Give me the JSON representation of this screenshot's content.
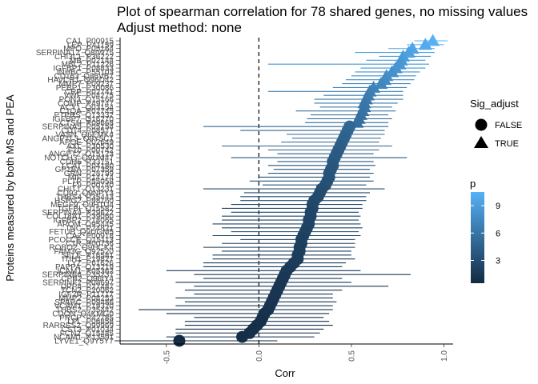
{
  "chart_data": {
    "type": "scatter",
    "title_line1": "Plot of spearman correlation for 78 shared genes, no missing values",
    "title_line2": "Adjust method: none",
    "xlabel": "Corr",
    "ylabel": "Proteins measured by both MS and PEA",
    "xlim": [
      -0.75,
      1.05
    ],
    "xticks": [
      -0.5,
      0.0,
      0.5,
      1.0
    ],
    "xtick_labels": [
      "-0.5",
      "0.0",
      "0.5",
      "1.0"
    ],
    "reference_line_x": 0,
    "reference_line_style": "dashed",
    "grid": false,
    "legend_position": "right",
    "shape_legend": {
      "title": "Sig_adjust",
      "items": [
        {
          "label": "FALSE",
          "shape": "circle"
        },
        {
          "label": "TRUE",
          "shape": "triangle"
        }
      ]
    },
    "color_legend": {
      "title": "p",
      "range": [
        0.5,
        10.5
      ],
      "breaks": [
        3,
        6,
        9
      ],
      "break_labels": [
        "3",
        "6",
        "9"
      ],
      "low_color": "#132b43",
      "high_color": "#56b1f7"
    },
    "points": [
      {
        "label": "CA1_P00915",
        "corr": 0.94,
        "lo": 0.84,
        "hi": 1.02,
        "p": 10.5,
        "sig": true
      },
      {
        "label": "LEP_P41159",
        "corr": 0.9,
        "lo": 0.8,
        "hi": 1.0,
        "p": 10.0,
        "sig": true
      },
      {
        "label": "MPO_P05164",
        "corr": 0.83,
        "lo": 0.7,
        "hi": 0.95,
        "p": 9.6,
        "sig": true
      },
      {
        "label": "SERPINA12_Q8IW75",
        "corr": 0.81,
        "lo": 0.52,
        "hi": 0.95,
        "p": 9.3,
        "sig": true
      },
      {
        "label": "CHI3L1_P36222",
        "corr": 0.78,
        "lo": 0.65,
        "hi": 0.93,
        "p": 9.0,
        "sig": true
      },
      {
        "label": "MB_P02144",
        "corr": 0.77,
        "lo": 0.58,
        "hi": 0.9,
        "p": 8.7,
        "sig": true
      },
      {
        "label": "MBL2_P11226",
        "corr": 0.76,
        "lo": 0.05,
        "hi": 0.92,
        "p": 8.5,
        "sig": true
      },
      {
        "label": "IGFBP1_P08833",
        "corr": 0.74,
        "lo": 0.55,
        "hi": 0.9,
        "p": 8.3,
        "sig": true
      },
      {
        "label": "INHBC_P55103",
        "corr": 0.72,
        "lo": 0.52,
        "hi": 0.87,
        "p": 8.1,
        "sig": true
      },
      {
        "label": "CD163_Q86VB7",
        "corr": 0.69,
        "lo": 0.5,
        "hi": 0.85,
        "p": 7.9,
        "sig": true
      },
      {
        "label": "HAVCR1_Q96D42",
        "corr": 0.68,
        "lo": 0.47,
        "hi": 0.84,
        "p": 7.6,
        "sig": true
      },
      {
        "label": "MMP7_P09237",
        "corr": 0.66,
        "lo": 0.45,
        "hi": 0.82,
        "p": 7.4,
        "sig": true
      },
      {
        "label": "PEBP1_P30086",
        "corr": 0.62,
        "lo": 0.4,
        "hi": 0.8,
        "p": 7.0,
        "sig": true
      },
      {
        "label": "CRP_P02741",
        "corr": 0.6,
        "lo": 0.05,
        "hi": 0.78,
        "p": 6.8,
        "sig": true
      },
      {
        "label": "VWF_P04275",
        "corr": 0.59,
        "lo": 0.35,
        "hi": 0.78,
        "p": 6.6,
        "sig": true
      },
      {
        "label": "PON3_Q15166",
        "corr": 0.58,
        "lo": 0.3,
        "hi": 0.78,
        "p": 6.4,
        "sig": true
      },
      {
        "label": "COMP_P49747",
        "corr": 0.57,
        "lo": 0.3,
        "hi": 0.75,
        "p": 6.2,
        "sig": true
      },
      {
        "label": "ACY1_Q03154",
        "corr": 0.57,
        "lo": 0.33,
        "hi": 0.72,
        "p": 6.1,
        "sig": true
      },
      {
        "label": "C1QA_P02745",
        "corr": 0.56,
        "lo": 0.2,
        "hi": 0.74,
        "p": 5.9,
        "sig": true
      },
      {
        "label": "PTPRS_Q13332",
        "corr": 0.55,
        "lo": 0.28,
        "hi": 0.7,
        "p": 5.8,
        "sig": true
      },
      {
        "label": "IGFBP7_Q16270",
        "corr": 0.54,
        "lo": 0.26,
        "hi": 0.72,
        "p": 5.6,
        "sig": true
      },
      {
        "label": "CTSH_P09668",
        "corr": 0.53,
        "lo": 0.25,
        "hi": 0.7,
        "p": 5.5,
        "sig": true
      },
      {
        "label": "SERPINA5_P05154",
        "corr": 0.49,
        "lo": -0.3,
        "hi": 0.7,
        "p": 5.0,
        "sig": false
      },
      {
        "label": "CD14_P08571",
        "corr": 0.48,
        "lo": -0.1,
        "hi": 0.68,
        "p": 4.9,
        "sig": false
      },
      {
        "label": "VASN_Q6EMK4",
        "corr": 0.47,
        "lo": 0.15,
        "hi": 0.68,
        "p": 4.8,
        "sig": false
      },
      {
        "label": "ANGPTL3_Q9Y5C1",
        "corr": 0.46,
        "lo": 0.18,
        "hi": 0.66,
        "p": 4.6,
        "sig": false
      },
      {
        "label": "APOE_P02649",
        "corr": 0.45,
        "lo": 0.12,
        "hi": 0.65,
        "p": 4.5,
        "sig": false
      },
      {
        "label": "AXL_P30530",
        "corr": 0.44,
        "lo": -0.2,
        "hi": 0.72,
        "p": 4.3,
        "sig": false
      },
      {
        "label": "F10_P00742",
        "corr": 0.43,
        "lo": 0.05,
        "hi": 0.65,
        "p": 4.2,
        "sig": false
      },
      {
        "label": "ANGPT2_O15123",
        "corr": 0.42,
        "lo": 0.1,
        "hi": 0.62,
        "p": 4.1,
        "sig": false
      },
      {
        "label": "NOTCH3_Q9UM47",
        "corr": 0.41,
        "lo": -0.15,
        "hi": 0.8,
        "p": 4.0,
        "sig": false
      },
      {
        "label": "CDH5_P33151",
        "corr": 0.4,
        "lo": 0.1,
        "hi": 0.62,
        "p": 3.9,
        "sig": false
      },
      {
        "label": "LCAT_P04180",
        "corr": 0.4,
        "lo": 0.05,
        "hi": 0.63,
        "p": 3.8,
        "sig": false
      },
      {
        "label": "GP1BA_P07359",
        "corr": 0.39,
        "lo": 0.08,
        "hi": 0.6,
        "p": 3.7,
        "sig": false
      },
      {
        "label": "GRN_P28799",
        "corr": 0.38,
        "lo": 0.05,
        "hi": 0.62,
        "p": 3.6,
        "sig": false
      },
      {
        "label": "MIF_P14174",
        "corr": 0.38,
        "lo": 0.0,
        "hi": 0.6,
        "p": 3.5,
        "sig": false
      },
      {
        "label": "PLTP_P55058",
        "corr": 0.37,
        "lo": -0.05,
        "hi": 0.62,
        "p": 3.4,
        "sig": false
      },
      {
        "label": "F9_P00740",
        "corr": 0.36,
        "lo": 0.02,
        "hi": 0.58,
        "p": 3.3,
        "sig": false
      },
      {
        "label": "CHIT1_Q13231",
        "corr": 0.34,
        "lo": -0.3,
        "hi": 0.68,
        "p": 3.1,
        "sig": false
      },
      {
        "label": "CD93_Q9NPY3",
        "corr": 0.33,
        "lo": -0.08,
        "hi": 0.6,
        "p": 3.0,
        "sig": false
      },
      {
        "label": "THBS4_P35443",
        "corr": 0.32,
        "lo": -0.1,
        "hi": 0.58,
        "p": 2.9,
        "sig": false
      },
      {
        "label": "HSPG2_P98160",
        "corr": 0.3,
        "lo": -0.1,
        "hi": 0.58,
        "p": 2.8,
        "sig": false
      },
      {
        "label": "MEGF9_Q9H1U4",
        "corr": 0.29,
        "lo": -0.15,
        "hi": 0.56,
        "p": 2.7,
        "sig": false
      },
      {
        "label": "TGFBI_Q15582",
        "corr": 0.29,
        "lo": -0.2,
        "hi": 0.56,
        "p": 2.6,
        "sig": false
      },
      {
        "label": "SERPINA4_P29622",
        "corr": 0.28,
        "lo": -0.15,
        "hi": 0.54,
        "p": 2.5,
        "sig": false
      },
      {
        "label": "COL18A1_P39060",
        "corr": 0.28,
        "lo": -0.2,
        "hi": 0.55,
        "p": 2.5,
        "sig": false
      },
      {
        "label": "IGFBP2_P18065",
        "corr": 0.27,
        "lo": -0.2,
        "hi": 0.54,
        "p": 2.4,
        "sig": false
      },
      {
        "label": "APOM_O95445",
        "corr": 0.27,
        "lo": -0.25,
        "hi": 0.55,
        "p": 2.4,
        "sig": false
      },
      {
        "label": "TNC_P24821",
        "corr": 0.26,
        "lo": -0.2,
        "hi": 0.56,
        "p": 2.3,
        "sig": false
      },
      {
        "label": "FETUB_Q9UGM5",
        "corr": 0.25,
        "lo": -0.15,
        "hi": 0.54,
        "p": 2.2,
        "sig": false
      },
      {
        "label": "CA2_P00918",
        "corr": 0.24,
        "lo": -0.25,
        "hi": 0.55,
        "p": 2.2,
        "sig": false
      },
      {
        "label": "PCOLCE_Q15113",
        "corr": 0.23,
        "lo": -0.1,
        "hi": 0.52,
        "p": 2.1,
        "sig": false
      },
      {
        "label": "C1R_P00736",
        "corr": 0.23,
        "lo": -0.2,
        "hi": 0.52,
        "p": 2.1,
        "sig": false
      },
      {
        "label": "ROBO2_Q9HCK4",
        "corr": 0.22,
        "lo": -0.3,
        "hi": 0.52,
        "p": 2.0,
        "sig": false
      },
      {
        "label": "FAM3C_Q92520",
        "corr": 0.22,
        "lo": -0.2,
        "hi": 0.5,
        "p": 2.0,
        "sig": false
      },
      {
        "label": "SELE_P16581",
        "corr": 0.21,
        "lo": -0.25,
        "hi": 0.5,
        "p": 1.9,
        "sig": false
      },
      {
        "label": "ITIH1_P19827",
        "corr": 0.21,
        "lo": -0.25,
        "hi": 0.52,
        "p": 1.9,
        "sig": false
      },
      {
        "label": "LYZ_P61626",
        "corr": 0.19,
        "lo": -0.3,
        "hi": 0.47,
        "p": 1.8,
        "sig": false
      },
      {
        "label": "PAPPA_Q13219",
        "corr": 0.17,
        "lo": -0.3,
        "hi": 0.45,
        "p": 1.7,
        "sig": false
      },
      {
        "label": "ICAM1_P05362",
        "corr": 0.15,
        "lo": -0.5,
        "hi": 0.55,
        "p": 1.6,
        "sig": false
      },
      {
        "label": "SERPINB6_P35237",
        "corr": 0.14,
        "lo": -0.35,
        "hi": 0.82,
        "p": 1.6,
        "sig": false
      },
      {
        "label": "CPB2_Q96IY4",
        "corr": 0.13,
        "lo": -0.3,
        "hi": 0.45,
        "p": 1.5,
        "sig": false
      },
      {
        "label": "SERPINF2_P08697",
        "corr": 0.12,
        "lo": -0.45,
        "hi": 0.5,
        "p": 1.5,
        "sig": false
      },
      {
        "label": "DPP4_P27487",
        "corr": 0.11,
        "lo": -0.35,
        "hi": 0.7,
        "p": 1.4,
        "sig": false
      },
      {
        "label": "TCN2_P20062",
        "corr": 0.1,
        "lo": -0.4,
        "hi": 0.45,
        "p": 1.4,
        "sig": false
      },
      {
        "label": "IGF2R_P11717",
        "corr": 0.09,
        "lo": -0.35,
        "hi": 0.4,
        "p": 1.3,
        "sig": false
      },
      {
        "label": "MMP2_P08253",
        "corr": 0.08,
        "lo": -0.45,
        "hi": 0.4,
        "p": 1.3,
        "sig": false
      },
      {
        "label": "SPARC_P09486",
        "corr": 0.07,
        "lo": -0.4,
        "hi": 0.42,
        "p": 1.2,
        "sig": false
      },
      {
        "label": "VCAM1_P19320",
        "corr": 0.06,
        "lo": -0.45,
        "hi": 0.4,
        "p": 1.2,
        "sig": false
      },
      {
        "label": "THBS2_P35442",
        "corr": 0.05,
        "lo": -0.65,
        "hi": 0.4,
        "p": 1.1,
        "sig": false
      },
      {
        "label": "CDON_Q4KMG0",
        "corr": 0.03,
        "lo": -0.5,
        "hi": 0.38,
        "p": 1.0,
        "sig": false
      },
      {
        "label": "PRCP_P42785",
        "corr": 0.02,
        "lo": -0.35,
        "hi": 0.35,
        "p": 1.0,
        "sig": false
      },
      {
        "label": "LPL_P06858",
        "corr": 0.01,
        "lo": -0.4,
        "hi": 0.38,
        "p": 0.9,
        "sig": false
      },
      {
        "label": "RARRES2_Q99969",
        "corr": -0.01,
        "lo": -0.4,
        "hi": 0.4,
        "p": 0.9,
        "sig": false
      },
      {
        "label": "CST3_P01034",
        "corr": -0.03,
        "lo": -0.45,
        "hi": 0.35,
        "p": 0.8,
        "sig": false
      },
      {
        "label": "FCN2_Q15485",
        "corr": -0.05,
        "lo": -0.45,
        "hi": 0.33,
        "p": 0.8,
        "sig": false
      },
      {
        "label": "NCAM1_P13591",
        "corr": -0.09,
        "lo": -0.5,
        "hi": 0.3,
        "p": 0.7,
        "sig": false
      },
      {
        "label": "LYVE1_Q9Y5Y7",
        "corr": -0.43,
        "lo": -0.78,
        "hi": 0.1,
        "p": 0.5,
        "sig": false
      }
    ]
  }
}
